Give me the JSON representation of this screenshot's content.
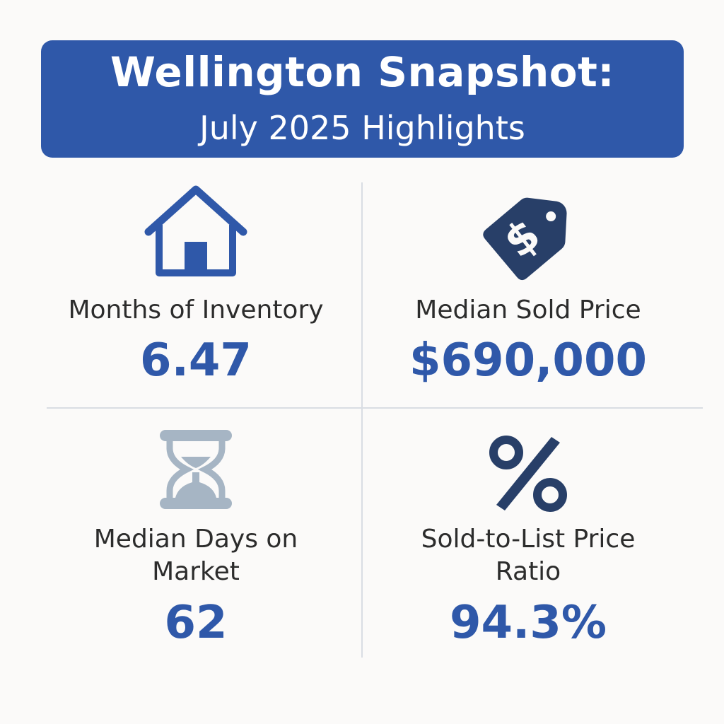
{
  "header": {
    "title_line1": "Wellington Snapshot:",
    "title_line2": "July 2025 Highlights"
  },
  "colors": {
    "accent_blue": "#2f58a9",
    "navy": "#283f68",
    "hourglass_gray": "#a6b5c4",
    "text_dark": "#2c2c2c",
    "divider": "#d9dde3",
    "background": "#fbfaf9"
  },
  "stats": [
    {
      "icon": "house-icon",
      "label_lines": [
        "Months of Inventory"
      ],
      "value": "6.47"
    },
    {
      "icon": "price-tag-icon",
      "label_lines": [
        "Median Sold Price"
      ],
      "value": "$690,000"
    },
    {
      "icon": "hourglass-icon",
      "label_lines": [
        "Median Days on",
        "Market"
      ],
      "value": "62"
    },
    {
      "icon": "percent-icon",
      "label_lines": [
        "Sold-to-List Price",
        "Ratio"
      ],
      "value": "94.3%"
    }
  ]
}
